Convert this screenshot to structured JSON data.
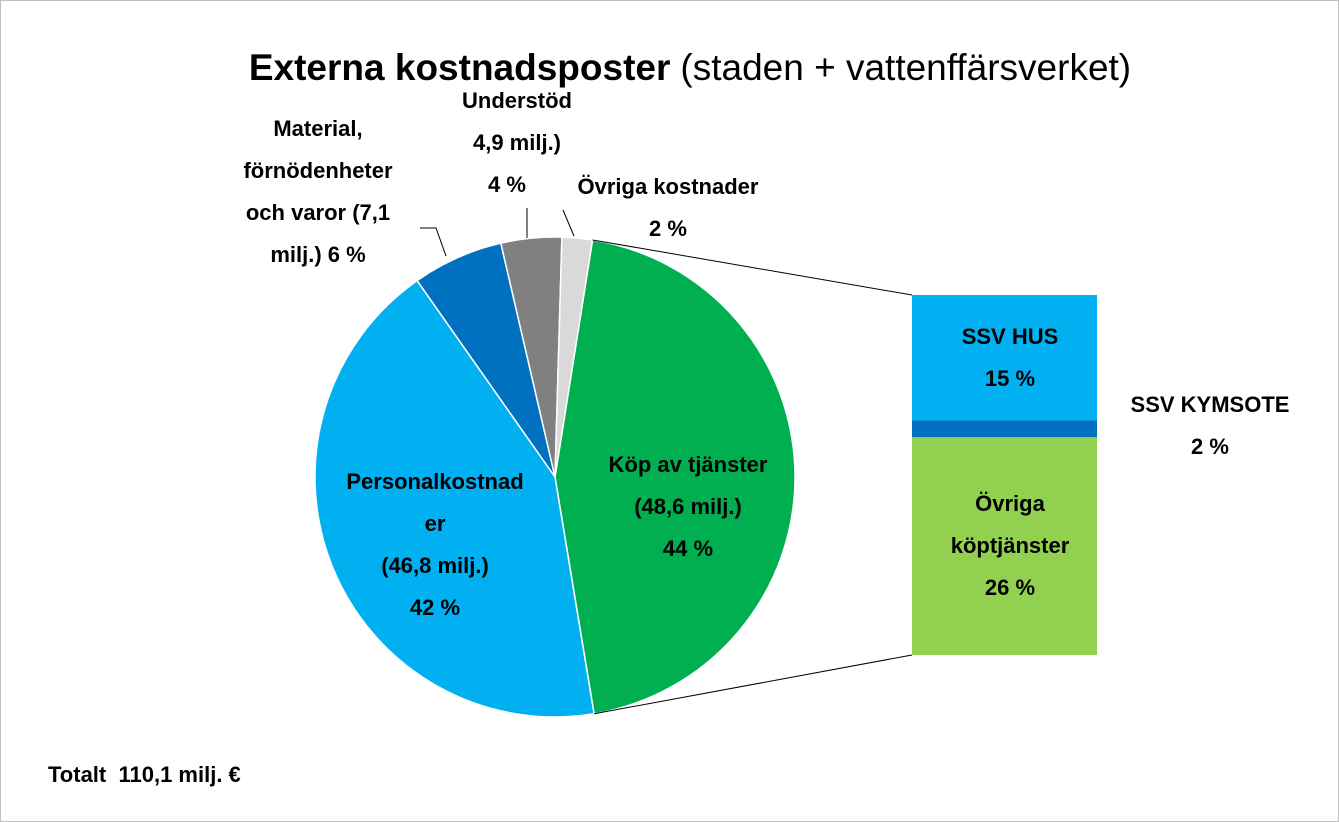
{
  "chart_data": {
    "type": "pie",
    "title": "Externa kostnadsposter",
    "subtitle": "(staden + vattenffärsverket)",
    "annotation": "Totalt  110,1 milj. €",
    "categories": [
      "Köp av tjänster",
      "Personalkostnader",
      "Material, förnödenheter och varor",
      "Understöd",
      "Övriga kostnader"
    ],
    "values": [
      44,
      42,
      6,
      4,
      2
    ],
    "colors": [
      "#00b050",
      "#00b0f0",
      "#0070c0",
      "#808080",
      "#d9d9d9"
    ],
    "value_labels": [
      [
        "Köp av tjänster",
        "(48,6 milj.)",
        "44 %"
      ],
      [
        "Personalkostnad",
        "er",
        "(46,8 milj.)",
        "42 %"
      ],
      [
        "Material,",
        "förnödenheter",
        "och varor (7,1",
        "milj.) 6 %"
      ],
      [
        "Understöd",
        "4,9 milj.)",
        "4 %"
      ],
      [
        "Övriga kostnader",
        "2 %"
      ]
    ],
    "breakdown": {
      "categories": [
        "SSV HUS",
        "SSV KYMSOTE",
        "Övriga köptjänster"
      ],
      "values": [
        15,
        2,
        26
      ],
      "colors": [
        "#00b0f0",
        "#0070c0",
        "#92d050"
      ],
      "value_labels": [
        [
          "SSV HUS",
          "15 %"
        ],
        [
          "SSV KYMSOTE",
          "2 %"
        ],
        [
          "Övriga",
          "köptjänster",
          "26 %"
        ]
      ]
    }
  }
}
